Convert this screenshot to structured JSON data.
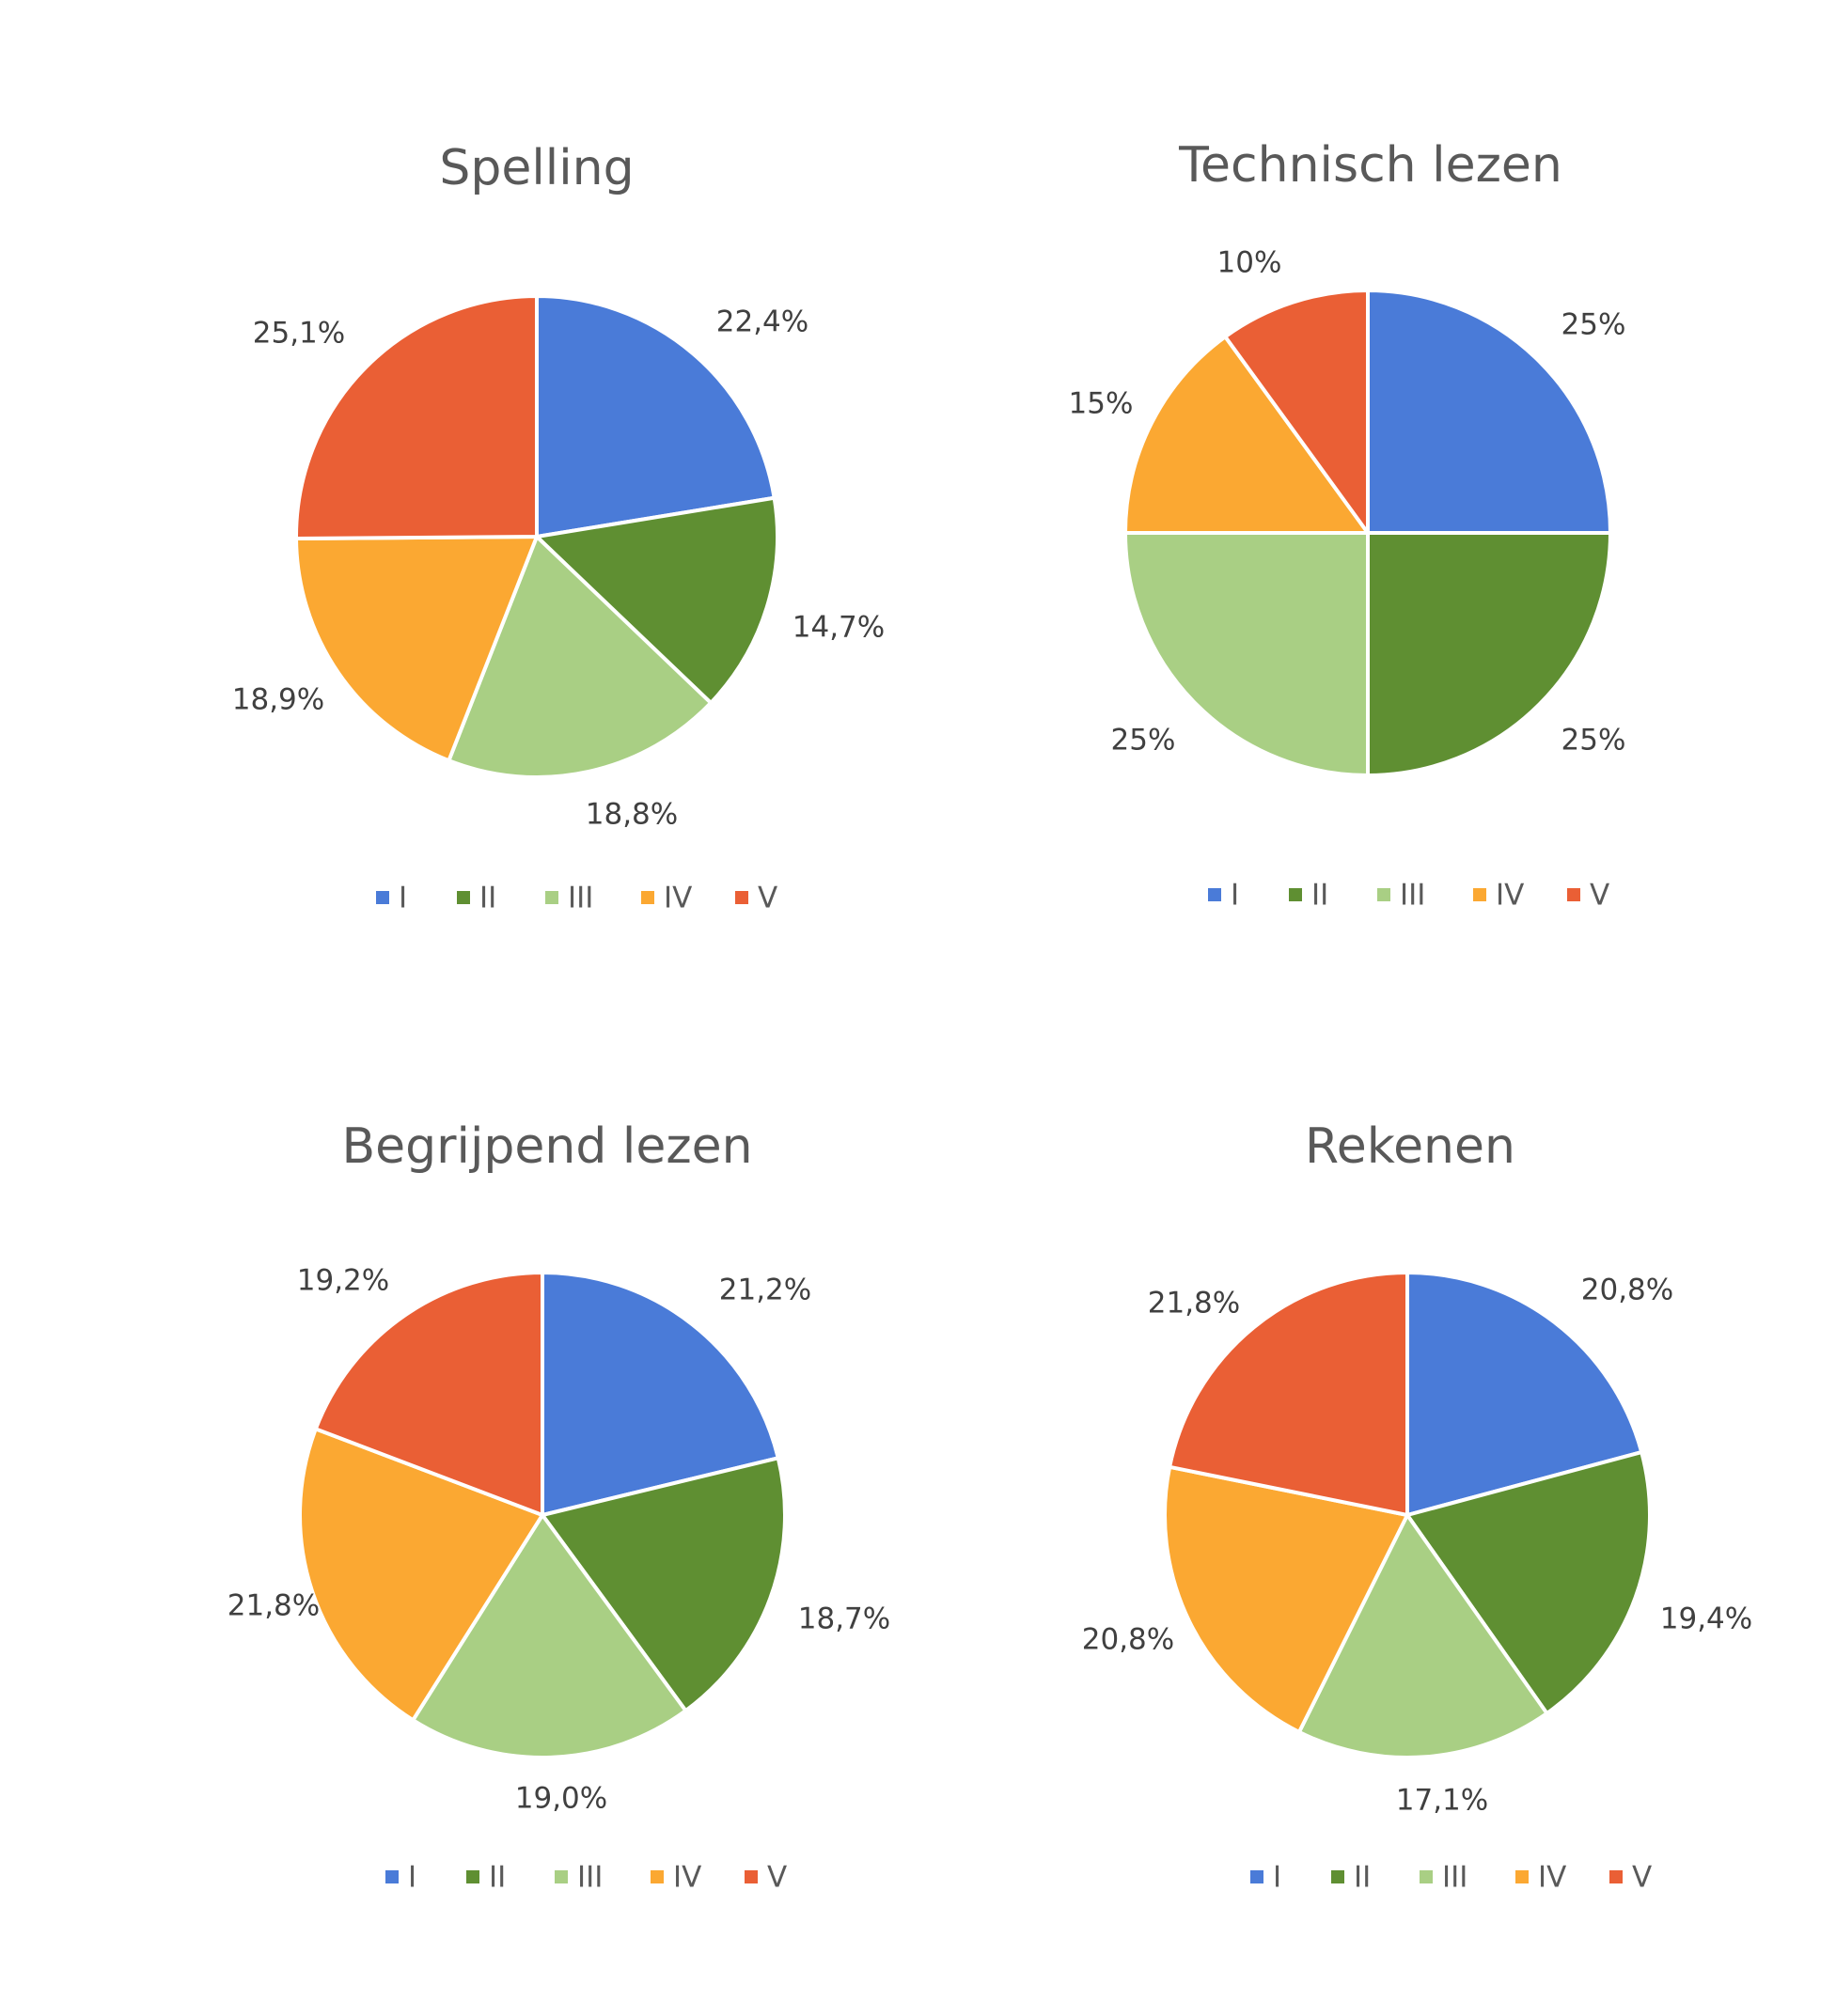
{
  "colors": {
    "I": "#4A7BD8",
    "II": "#5F8F32",
    "III": "#A9CF84",
    "IV": "#FBA832",
    "V": "#EA5F35"
  },
  "legend_labels": [
    "I",
    "II",
    "III",
    "IV",
    "V"
  ],
  "chart_data": [
    {
      "type": "pie",
      "title": "Spelling",
      "categories": [
        "I",
        "II",
        "III",
        "IV",
        "V"
      ],
      "values": [
        22.4,
        14.7,
        18.8,
        18.9,
        25.1
      ],
      "labels": [
        "22,4%",
        "14,7%",
        "18,8%",
        "18,9%",
        "25,1%"
      ],
      "legend_position": "bottom"
    },
    {
      "type": "pie",
      "title": "Technisch lezen",
      "categories": [
        "I",
        "II",
        "III",
        "IV",
        "V"
      ],
      "values": [
        25,
        25,
        25,
        15,
        10
      ],
      "labels": [
        "25%",
        "25%",
        "25%",
        "15%",
        "10%"
      ],
      "legend_position": "bottom"
    },
    {
      "type": "pie",
      "title": "Begrijpend lezen",
      "categories": [
        "I",
        "II",
        "III",
        "IV",
        "V"
      ],
      "values": [
        21.2,
        18.7,
        19.0,
        21.8,
        19.2
      ],
      "labels": [
        "21,2%",
        "18,7%",
        "19,0%",
        "21,8%",
        "19,2%"
      ],
      "legend_position": "bottom"
    },
    {
      "type": "pie",
      "title": "Rekenen",
      "categories": [
        "I",
        "II",
        "III",
        "IV",
        "V"
      ],
      "values": [
        20.8,
        19.4,
        17.1,
        20.8,
        21.8
      ],
      "labels": [
        "20,8%",
        "19,4%",
        "17,1%",
        "20,8%",
        "21,8%"
      ],
      "legend_position": "bottom"
    }
  ]
}
